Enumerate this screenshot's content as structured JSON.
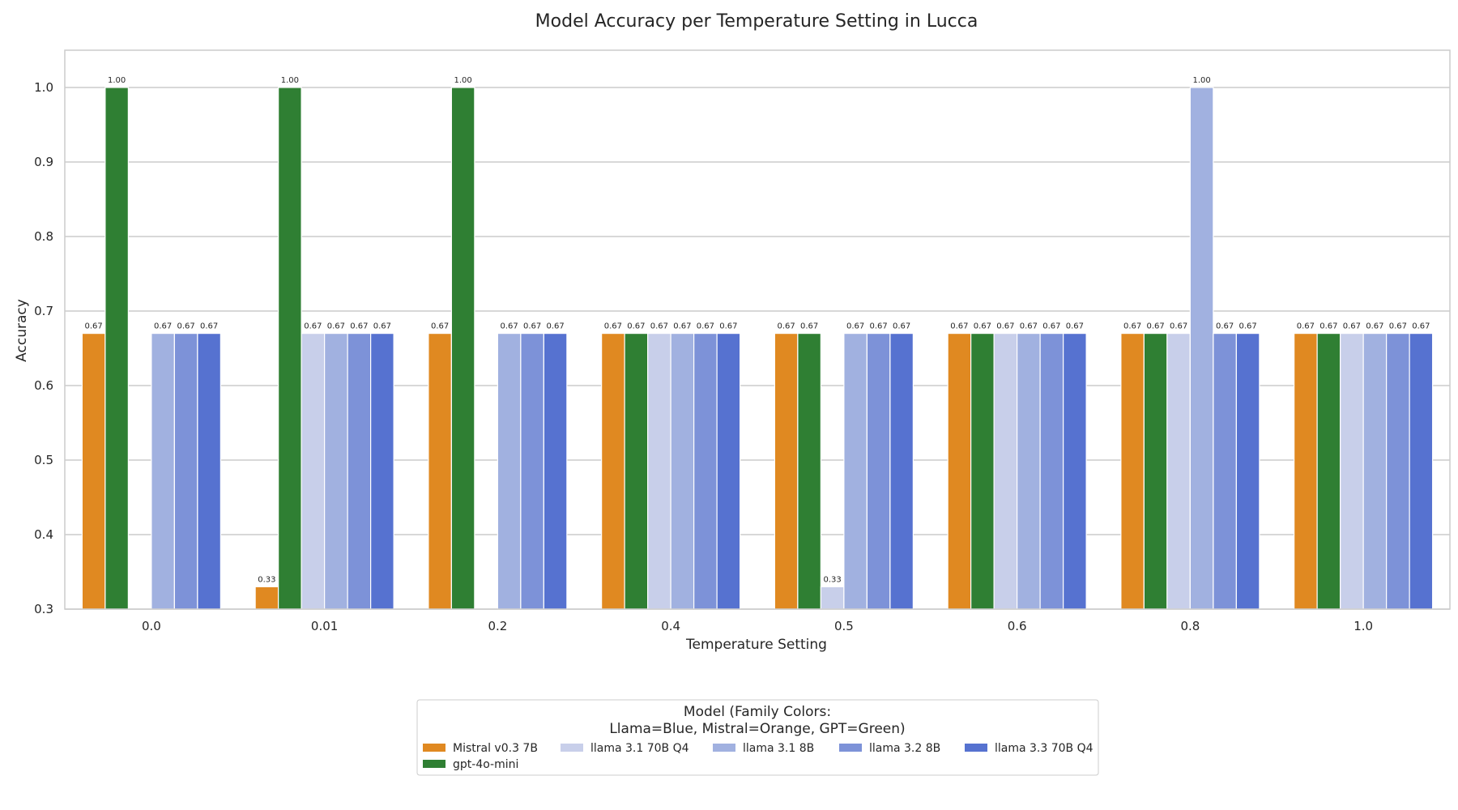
{
  "chart_data": {
    "type": "bar",
    "title": "Model Accuracy per Temperature Setting in Lucca",
    "xlabel": "Temperature Setting",
    "ylabel": "Accuracy",
    "ylim": [
      0.3,
      1.05
    ],
    "yticks": [
      "0.3",
      "0.4",
      "0.5",
      "0.6",
      "0.7",
      "0.8",
      "0.9",
      "1.0"
    ],
    "grid": "horizontal",
    "categories": [
      "0.0",
      "0.01",
      "0.2",
      "0.4",
      "0.5",
      "0.6",
      "0.8",
      "1.0"
    ],
    "series": [
      {
        "name": "Mistral v0.3 7B",
        "color": "#e08921",
        "values": [
          0.67,
          0.33,
          0.67,
          0.67,
          0.67,
          0.67,
          0.67,
          0.67
        ],
        "labels": [
          "0.67",
          "0.33",
          "0.67",
          "0.67",
          "0.67",
          "0.67",
          "0.67",
          "0.67"
        ]
      },
      {
        "name": "gpt-4o-mini",
        "color": "#2f7f33",
        "values": [
          1.0,
          1.0,
          1.0,
          0.67,
          0.67,
          0.67,
          0.67,
          0.67
        ],
        "labels": [
          "1.00",
          "1.00",
          "1.00",
          "0.67",
          "0.67",
          "0.67",
          "0.67",
          "0.67"
        ]
      },
      {
        "name": "llama 3.1 70B Q4",
        "color": "#c8cfea",
        "values": [
          null,
          0.67,
          null,
          0.67,
          0.33,
          0.67,
          0.67,
          0.67
        ],
        "labels": [
          null,
          "0.67",
          null,
          "0.67",
          "0.33",
          "0.67",
          "0.67",
          "0.67"
        ]
      },
      {
        "name": "llama 3.1 8B",
        "color": "#a1b1e0",
        "values": [
          0.67,
          0.67,
          0.67,
          0.67,
          0.67,
          0.67,
          1.0,
          0.67
        ],
        "labels": [
          "0.67",
          "0.67",
          "0.67",
          "0.67",
          "0.67",
          "0.67",
          "1.00",
          "0.67"
        ]
      },
      {
        "name": "llama 3.2 8B",
        "color": "#7d92d8",
        "values": [
          0.67,
          0.67,
          0.67,
          0.67,
          0.67,
          0.67,
          0.67,
          0.67
        ],
        "labels": [
          "0.67",
          "0.67",
          "0.67",
          "0.67",
          "0.67",
          "0.67",
          "0.67",
          "0.67"
        ]
      },
      {
        "name": "llama 3.3 70B Q4",
        "color": "#5672d0",
        "values": [
          0.67,
          0.67,
          0.67,
          0.67,
          0.67,
          0.67,
          0.67,
          0.67
        ],
        "labels": [
          "0.67",
          "0.67",
          "0.67",
          "0.67",
          "0.67",
          "0.67",
          "0.67",
          "0.67"
        ]
      }
    ],
    "legend": {
      "placement": "bottom-center",
      "title_lines": [
        "Model (Family Colors:",
        "Llama=Blue, Mistral=Orange, GPT=Green)"
      ],
      "order": [
        "Mistral v0.3 7B",
        "llama 3.1 70B Q4",
        "llama 3.1 8B",
        "llama 3.2 8B",
        "llama 3.3 70B Q4",
        "gpt-4o-mini"
      ]
    }
  }
}
